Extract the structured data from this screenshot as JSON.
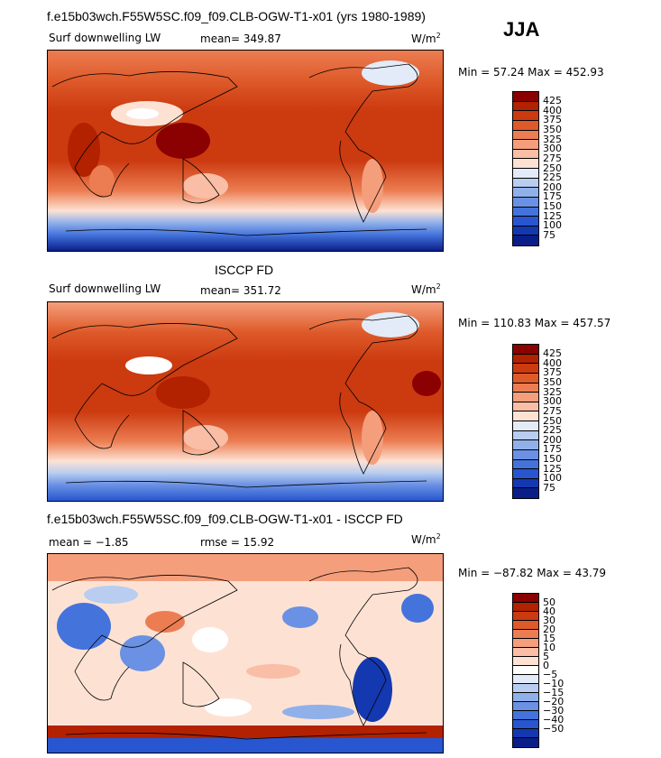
{
  "header": {
    "title": "f.e15b03wch.F55W5SC.f09_f09.CLB-OGW-T1-x01 (yrs 1980-1989)",
    "season": "JJA"
  },
  "panel1": {
    "variable": "Surf downwelling LW",
    "mean_text": "mean= 349.87",
    "units_base": "W/m",
    "units_exp": "2",
    "minmax": "Min =  57.24 Max = 452.93"
  },
  "panel2": {
    "title": "ISCCP FD",
    "variable": "Surf downwelling LW",
    "mean_text": "mean= 351.72",
    "units_base": "W/m",
    "units_exp": "2",
    "minmax": "Min = 110.83 Max = 457.57"
  },
  "panel3": {
    "title": "f.e15b03wch.F55W5SC.f09_f09.CLB-OGW-T1-x01 - ISCCP FD",
    "mean_text": "mean =  −1.85",
    "rmse_text": "rmse =  15.92",
    "units_base": "W/m",
    "units_exp": "2",
    "minmax": "Min = −87.82 Max =  43.79"
  },
  "colors": {
    "abs_scale": [
      "#8b0000",
      "#b22100",
      "#cc3a10",
      "#de5a2a",
      "#ec7d52",
      "#f49e7c",
      "#f9bea5",
      "#fde2d4",
      "#e2ebf7",
      "#b8cdf0",
      "#90b0ea",
      "#6a91e3",
      "#4473dc",
      "#2756d0",
      "#1438b0",
      "#0a1e8a"
    ],
    "diff_scale": [
      "#8b0000",
      "#b22100",
      "#cc3a10",
      "#de5a2a",
      "#ec7d52",
      "#f49e7c",
      "#f9bea5",
      "#fde2d4",
      "#ffffff",
      "#e2ebf7",
      "#b8cdf0",
      "#90b0ea",
      "#6a91e3",
      "#4473dc",
      "#2756d0",
      "#1438b0",
      "#0a1e8a"
    ]
  },
  "chart_data": [
    {
      "type": "heatmap",
      "title": "Surf downwelling LW",
      "subtitle": "f.e15b03wch.F55W5SC.f09_f09.CLB-OGW-T1-x01 (yrs 1980-1989)",
      "units": "W/m2",
      "mean": 349.87,
      "min": 57.24,
      "max": 452.93,
      "colorbar_levels": [
        425,
        400,
        375,
        350,
        325,
        300,
        275,
        250,
        225,
        200,
        175,
        150,
        125,
        100,
        75
      ]
    },
    {
      "type": "heatmap",
      "title": "ISCCP FD",
      "subtitle": "Surf downwelling LW",
      "units": "W/m2",
      "mean": 351.72,
      "min": 110.83,
      "max": 457.57,
      "colorbar_levels": [
        425,
        400,
        375,
        350,
        325,
        300,
        275,
        250,
        225,
        200,
        175,
        150,
        125,
        100,
        75
      ]
    },
    {
      "type": "heatmap",
      "title": "f.e15b03wch.F55W5SC.f09_f09.CLB-OGW-T1-x01 - ISCCP FD",
      "units": "W/m2",
      "mean": -1.85,
      "rmse": 15.92,
      "min": -87.82,
      "max": 43.79,
      "colorbar_levels": [
        50,
        40,
        30,
        20,
        15,
        10,
        5,
        0,
        -5,
        -10,
        -15,
        -20,
        -30,
        -40,
        -50
      ]
    }
  ],
  "colorbar_labels": {
    "abs": [
      "425",
      "400",
      "375",
      "350",
      "325",
      "300",
      "275",
      "250",
      "225",
      "200",
      "175",
      "150",
      "125",
      "100",
      "75"
    ],
    "diff": [
      "50",
      "40",
      "30",
      "20",
      "15",
      "10",
      "5",
      "0",
      "−5",
      "−10",
      "−15",
      "−20",
      "−30",
      "−40",
      "−50"
    ]
  }
}
